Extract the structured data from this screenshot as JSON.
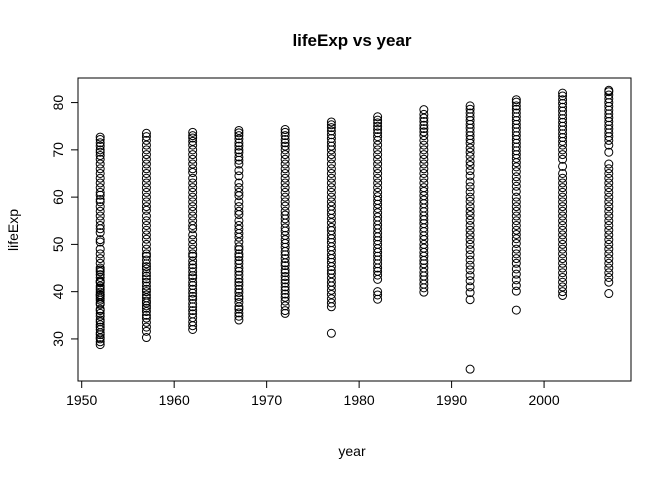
{
  "chart_data": {
    "type": "scatter",
    "title": "lifeExp vs year",
    "xlabel": "year",
    "ylabel": "lifeExp",
    "xlim": [
      1949.6,
      2009.4
    ],
    "ylim": [
      21.1,
      85.2
    ],
    "x_ticks": [
      1950,
      1960,
      1970,
      1980,
      1990,
      2000
    ],
    "x_tick_labels": [
      "1950",
      "1960",
      "1970",
      "1980",
      "1990",
      "2000"
    ],
    "y_ticks": [
      30,
      40,
      50,
      60,
      70,
      80
    ],
    "y_tick_labels": [
      "30",
      "40",
      "50",
      "60",
      "70",
      "80"
    ],
    "grid": false,
    "legend": "none",
    "marker": "open-circle",
    "colors": {
      "points": "#000000",
      "axes": "#000000",
      "background": "#ffffff"
    },
    "series": [
      {
        "name": "lifeExp",
        "points": [
          {
            "x": 1952,
            "values": [
              28.8,
              29.4,
              30.0,
              30.3,
              30.9,
              31.3,
              32.0,
              32.5,
              33.0,
              33.6,
              34.0,
              34.8,
              35.4,
              36.0,
              36.3,
              37.3,
              37.6,
              38.2,
              38.6,
              39.0,
              39.3,
              39.4,
              39.9,
              40.4,
              40.8,
              41.2,
              41.9,
              42.1,
              42.3,
              43.0,
              43.6,
              44.2,
              44.6,
              45.0,
              46.0,
              47.0,
              48.0,
              49.0,
              50.5,
              51.0,
              52.5,
              53.3,
              54.0,
              55.0,
              56.0,
              57.0,
              58.0,
              59.0,
              59.5,
              60.4,
              61.0,
              62.0,
              63.0,
              64.0,
              65.0,
              66.0,
              67.0,
              68.0,
              68.8,
              69.5,
              70.0,
              70.8,
              71.5,
              72.2,
              72.7
            ]
          },
          {
            "x": 1957,
            "values": [
              30.3,
              31.6,
              32.5,
              33.5,
              34.4,
              35.0,
              35.8,
              36.5,
              37.0,
              37.6,
              38.0,
              38.7,
              39.3,
              40.0,
              40.5,
              41.2,
              42.0,
              42.7,
              43.3,
              44.0,
              44.8,
              45.3,
              45.9,
              46.7,
              47.5,
              48.0,
              49.0,
              50.0,
              51.1,
              52.0,
              53.0,
              54.0,
              55.0,
              56.0,
              57.2,
              58.0,
              59.0,
              60.0,
              61.0,
              62.0,
              63.0,
              64.0,
              65.0,
              66.0,
              67.0,
              68.0,
              69.0,
              70.0,
              71.0,
              72.0,
              72.8,
              73.5
            ]
          },
          {
            "x": 1962,
            "values": [
              32.0,
              32.8,
              33.6,
              34.5,
              35.3,
              36.0,
              36.8,
              37.5,
              38.4,
              39.0,
              39.7,
              40.5,
              41.3,
              42.0,
              42.9,
              43.4,
              44.2,
              45.0,
              45.7,
              46.5,
              47.5,
              48.0,
              49.0,
              50.0,
              51.0,
              52.0,
              53.3,
              54.0,
              55.0,
              56.0,
              57.0,
              58.0,
              59.0,
              60.0,
              61.0,
              62.0,
              63.0,
              64.0,
              65.2,
              66.0,
              67.0,
              68.0,
              69.0,
              70.0,
              71.0,
              71.8,
              72.5,
              73.0,
              73.7
            ]
          },
          {
            "x": 1967,
            "values": [
              34.0,
              34.8,
              35.5,
              36.3,
              36.8,
              37.7,
              38.5,
              39.0,
              39.8,
              40.5,
              41.3,
              42.0,
              42.7,
              43.5,
              44.3,
              45.0,
              45.9,
              46.6,
              47.4,
              48.0,
              48.9,
              49.5,
              50.5,
              51.5,
              52.3,
              53.2,
              54.0,
              55.0,
              56.3,
              57.0,
              58.0,
              59.0,
              60.3,
              61.0,
              62.0,
              63.0,
              64.5,
              65.6,
              67.0,
              67.8,
              68.5,
              69.4,
              70.0,
              70.8,
              71.5,
              72.3,
              73.0,
              73.6,
              74.1
            ]
          },
          {
            "x": 1972,
            "values": [
              35.4,
              36.0,
              37.0,
              38.0,
              38.8,
              39.5,
              40.3,
              41.0,
              41.8,
              42.5,
              43.2,
              44.0,
              44.6,
              45.5,
              46.1,
              47.0,
              47.8,
              48.5,
              49.4,
              50.2,
              51.0,
              51.9,
              52.8,
              53.5,
              54.5,
              55.4,
              56.2,
              57.0,
              58.1,
              59.0,
              60.0,
              61.0,
              62.0,
              63.0,
              64.0,
              65.0,
              66.0,
              67.0,
              68.0,
              69.0,
              70.0,
              70.8,
              71.5,
              72.2,
              73.0,
              73.7,
              74.3
            ]
          },
          {
            "x": 1977,
            "values": [
              31.2,
              36.8,
              37.6,
              38.5,
              39.4,
              40.3,
              41.2,
              42.0,
              42.9,
              43.8,
              44.5,
              45.3,
              46.2,
              47.0,
              47.8,
              48.7,
              49.5,
              50.4,
              51.2,
              52.0,
              52.9,
              53.6,
              54.6,
              55.5,
              56.4,
              57.2,
              58.1,
              59.0,
              60.0,
              61.0,
              62.0,
              63.0,
              64.0,
              65.0,
              66.0,
              67.0,
              68.1,
              69.0,
              70.0,
              70.8,
              71.6,
              72.4,
              73.2,
              74.0,
              74.7,
              75.3,
              75.9
            ]
          },
          {
            "x": 1982,
            "values": [
              38.4,
              39.3,
              40.0,
              42.6,
              43.5,
              44.3,
              45.0,
              45.9,
              46.7,
              47.5,
              48.3,
              49.1,
              50.0,
              50.8,
              51.6,
              52.4,
              53.3,
              54.1,
              55.0,
              55.8,
              56.7,
              57.6,
              58.5,
              59.3,
              60.1,
              61.0,
              62.0,
              63.0,
              64.0,
              65.0,
              66.0,
              67.0,
              68.0,
              69.0,
              70.0,
              71.0,
              72.0,
              72.8,
              73.6,
              74.3,
              75.0,
              75.7,
              76.3,
              77.0
            ]
          },
          {
            "x": 1987,
            "values": [
              39.9,
              40.8,
              41.6,
              42.5,
              43.3,
              44.1,
              45.0,
              45.9,
              46.6,
              47.5,
              48.3,
              49.2,
              50.0,
              51.0,
              51.8,
              52.7,
              53.5,
              54.4,
              55.2,
              56.0,
              56.9,
              57.7,
              58.6,
              59.4,
              60.3,
              61.2,
              62.0,
              63.0,
              64.0,
              65.0,
              66.0,
              67.0,
              68.0,
              69.0,
              70.0,
              71.0,
              72.0,
              73.0,
              73.8,
              74.5,
              75.2,
              76.0,
              76.7,
              77.5,
              78.5
            ]
          },
          {
            "x": 1992,
            "values": [
              23.6,
              38.3,
              39.8,
              41.0,
              42.3,
              43.4,
              44.6,
              45.6,
              46.7,
              47.8,
              48.9,
              50.0,
              51.0,
              52.0,
              53.0,
              54.0,
              55.1,
              56.1,
              57.0,
              58.0,
              59.1,
              60.0,
              61.1,
              62.2,
              63.2,
              64.5,
              65.6,
              66.7,
              67.5,
              68.6,
              69.5,
              70.4,
              71.4,
              72.2,
              73.0,
              73.8,
              74.6,
              75.4,
              76.2,
              77.0,
              77.8,
              78.6,
              79.3
            ]
          },
          {
            "x": 1997,
            "values": [
              36.1,
              40.1,
              41.3,
              42.5,
              43.7,
              44.8,
              46.0,
              47.0,
              48.0,
              49.0,
              50.2,
              51.2,
              52.1,
              53.0,
              54.0,
              55.0,
              56.0,
              57.0,
              58.0,
              59.0,
              60.0,
              61.2,
              62.3,
              63.3,
              64.3,
              65.4,
              66.4,
              67.3,
              68.2,
              69.0,
              69.8,
              70.6,
              71.4,
              72.2,
              73.0,
              73.8,
              74.6,
              75.4,
              76.2,
              77.0,
              77.8,
              78.6,
              79.3,
              80.1,
              80.6
            ]
          },
          {
            "x": 2002,
            "values": [
              39.2,
              40.0,
              41.0,
              42.0,
              43.0,
              44.0,
              45.0,
              46.0,
              47.0,
              48.0,
              49.0,
              50.0,
              51.0,
              52.0,
              53.0,
              54.0,
              55.0,
              56.0,
              57.0,
              58.0,
              59.0,
              60.0,
              61.0,
              62.0,
              63.0,
              64.0,
              65.0,
              66.5,
              68.0,
              69.0,
              70.0,
              71.0,
              71.8,
              72.6,
              73.4,
              74.2,
              75.0,
              75.8,
              76.6,
              77.4,
              78.2,
              79.0,
              79.8,
              80.6,
              81.4,
              82.0
            ]
          },
          {
            "x": 2007,
            "values": [
              39.6,
              42.0,
              43.0,
              44.0,
              45.0,
              46.0,
              47.0,
              48.0,
              49.0,
              50.0,
              51.0,
              52.0,
              53.0,
              54.0,
              55.0,
              56.0,
              57.0,
              58.0,
              59.0,
              60.0,
              61.0,
              62.0,
              63.0,
              64.0,
              65.0,
              66.0,
              67.0,
              69.5,
              71.0,
              72.0,
              72.8,
              73.6,
              74.4,
              75.2,
              76.0,
              76.8,
              77.6,
              78.4,
              79.2,
              80.0,
              80.8,
              81.6,
              82.3,
              82.6
            ]
          }
        ]
      }
    ]
  }
}
